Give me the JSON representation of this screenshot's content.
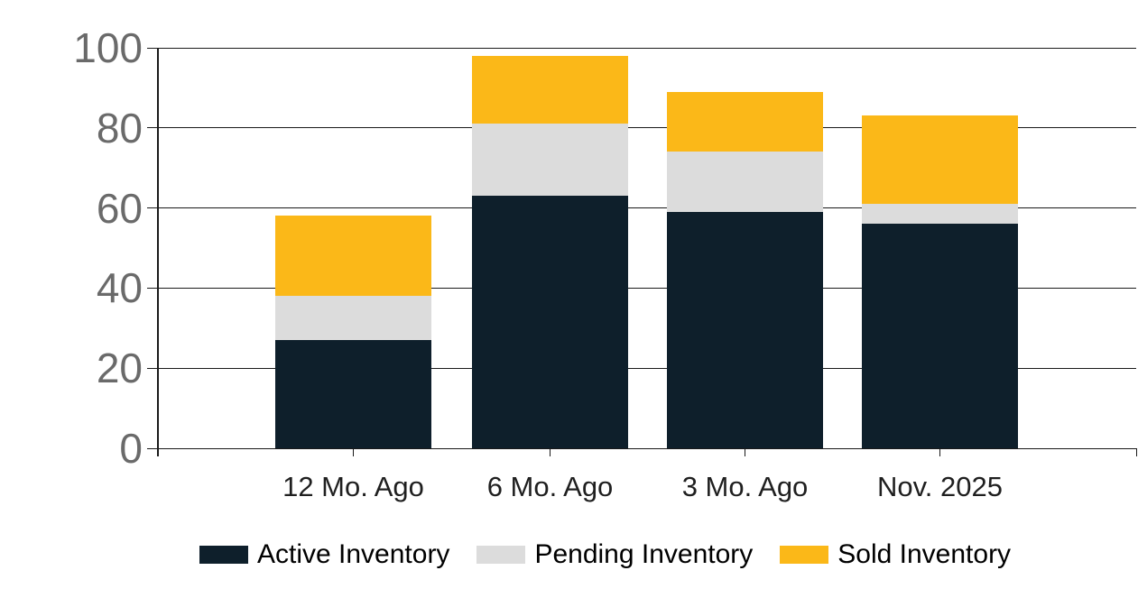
{
  "chart_data": {
    "type": "bar",
    "stacked": true,
    "title": "",
    "xlabel": "",
    "ylabel": "",
    "categories": [
      "12 Mo. Ago",
      "6 Mo. Ago",
      "3 Mo. Ago",
      "Nov. 2025"
    ],
    "series": [
      {
        "name": "Active Inventory",
        "color": "#0e1f2b",
        "values": [
          27,
          63,
          59,
          56
        ]
      },
      {
        "name": "Pending Inventory",
        "color": "#dcdcdc",
        "values": [
          11,
          18,
          15,
          5
        ]
      },
      {
        "name": "Sold Inventory",
        "color": "#fbb818",
        "values": [
          20,
          17,
          15,
          22
        ]
      }
    ],
    "stack_totals": [
      58,
      98,
      89,
      83
    ],
    "ylim": [
      0,
      100
    ],
    "yticks": [
      0,
      20,
      40,
      60,
      80,
      100
    ],
    "grid": true,
    "legend_position": "bottom"
  },
  "colors": {
    "background": "#ffffff",
    "gridline": "#1a1a1a",
    "y_axis_label": "#6a6a6a",
    "x_axis_label": "#1f1f1f",
    "legend_text": "#000000"
  }
}
